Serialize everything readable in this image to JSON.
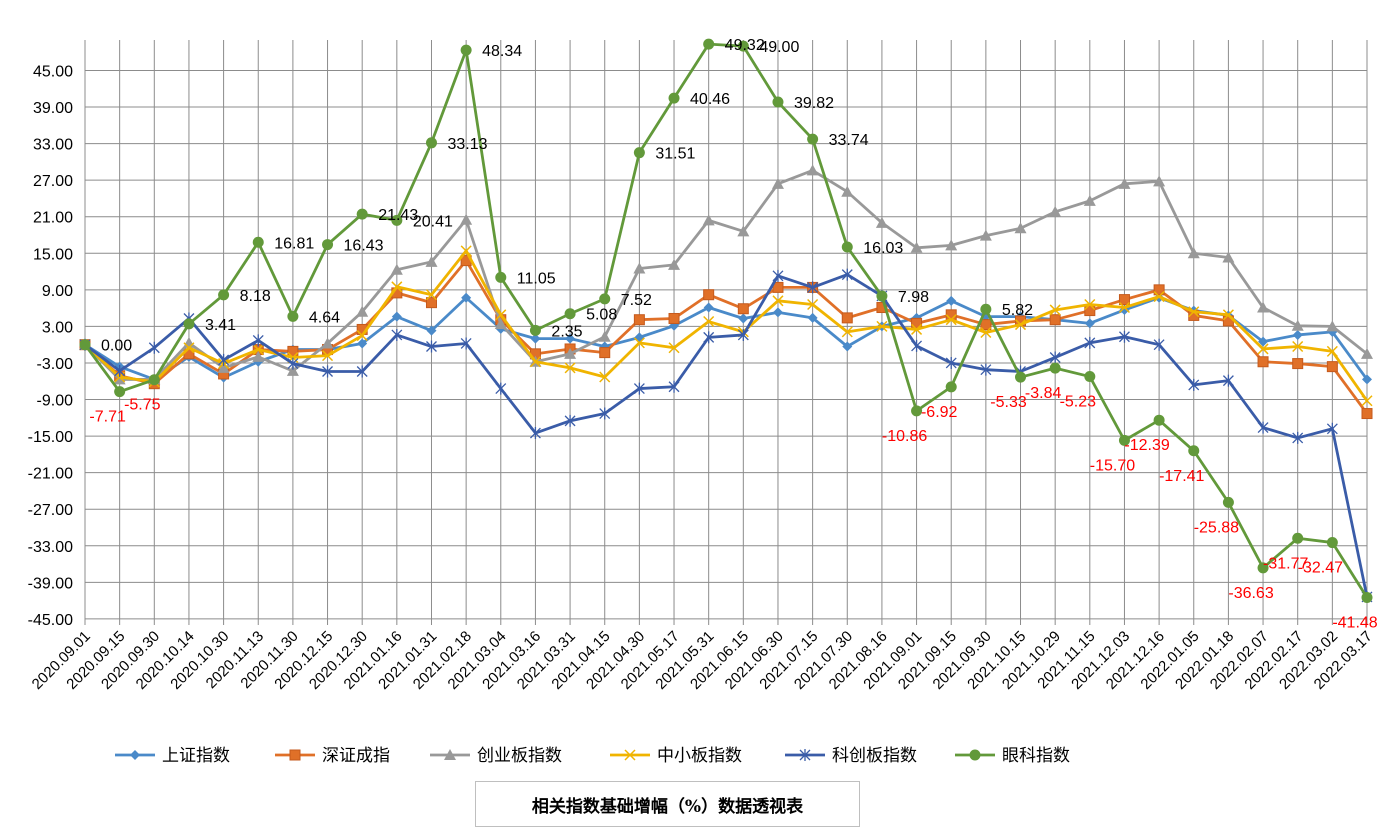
{
  "chart_data": {
    "type": "line",
    "title": "相关指数基础增幅（%）数据透视表",
    "xlabel": "",
    "ylabel": "",
    "ylim": [
      -46,
      50
    ],
    "yticks": [
      -45,
      -39,
      -33,
      -27,
      -21,
      -15,
      -9,
      -3,
      3,
      9,
      15,
      21,
      27,
      33,
      39,
      45
    ],
    "ytick_labels": [
      "-45.00",
      "-39.00",
      "-33.00",
      "-27.00",
      "-21.00",
      "-15.00",
      "-9.00",
      "-3.00",
      "3.00",
      "9.00",
      "15.00",
      "21.00",
      "27.00",
      "33.00",
      "39.00",
      "45.00"
    ],
    "grid": true,
    "legend_position": "bottom",
    "categories": [
      "2020.09.01",
      "2020.09.15",
      "2020.09.30",
      "2020.10.14",
      "2020.10.30",
      "2020.11.13",
      "2020.11.30",
      "2020.12.15",
      "2020.12.30",
      "2021.01.16",
      "2021.01.31",
      "2021.02.18",
      "2021.03.04",
      "2021.03.16",
      "2021.03.31",
      "2021.04.15",
      "2021.04.30",
      "2021.05.17",
      "2021.05.31",
      "2021.06.15",
      "2021.06.30",
      "2021.07.15",
      "2021.07.30",
      "2021.08.16",
      "2021.09.01",
      "2021.09.15",
      "2021.09.30",
      "2021.10.15",
      "2021.10.29",
      "2021.11.15",
      "2021.12.03",
      "2021.12.16",
      "2022.01.05",
      "2022.01.18",
      "2022.02.07",
      "2022.02.17",
      "2022.03.02",
      "2022.03.17"
    ],
    "series": [
      {
        "name": "上证指数",
        "color": "#4a8ac9",
        "marker": "diamond",
        "values": [
          0,
          -3.6,
          -5.7,
          -2,
          -5.4,
          -2.8,
          -0.8,
          -0.8,
          0.2,
          4.6,
          2.3,
          7.7,
          2.6,
          1,
          1,
          -0.3,
          1.2,
          3.1,
          6.1,
          4.3,
          5.3,
          4.4,
          -0.3,
          3,
          4.4,
          7.2,
          4.6,
          4.6,
          4.1,
          3.5,
          5.7,
          7.7,
          5.6,
          4.8,
          0.5,
          1.6,
          2.1,
          -5.7
        ]
      },
      {
        "name": "深证成指",
        "color": "#e07028",
        "marker": "square",
        "values": [
          0,
          -5.1,
          -6.4,
          -1.5,
          -4.8,
          -0.8,
          -1.1,
          -0.8,
          2.5,
          8.5,
          6.9,
          13.8,
          4.1,
          -1.5,
          -0.7,
          -1.3,
          4.1,
          4.3,
          8.2,
          5.9,
          9.4,
          9.4,
          4.4,
          6.1,
          3.5,
          4.9,
          3.3,
          3.9,
          4.1,
          5.6,
          7.4,
          9,
          4.8,
          3.9,
          -2.8,
          -3.1,
          -3.6,
          -11.3
        ]
      },
      {
        "name": "创业板指数",
        "color": "#999999",
        "marker": "triangle",
        "values": [
          0,
          -5.7,
          -5.7,
          0.3,
          -3.8,
          -2,
          -4.3,
          0.2,
          5.4,
          12.3,
          13.6,
          20.5,
          3.4,
          -2.8,
          -1.5,
          1.3,
          12.5,
          13.1,
          20.4,
          18.6,
          26.4,
          28.6,
          25.1,
          20,
          15.9,
          16.3,
          17.9,
          19.1,
          21.8,
          23.6,
          26.4,
          26.8,
          15,
          14.3,
          6.1,
          3.1,
          3,
          -1.5
        ]
      },
      {
        "name": "中小板指数",
        "color": "#f0b400",
        "marker": "x",
        "values": [
          0,
          -5.3,
          -6.1,
          -0.5,
          -3.1,
          -0.8,
          -2.1,
          -1.8,
          1.5,
          9.5,
          8.2,
          15.4,
          4.9,
          -2.8,
          -3.8,
          -5.3,
          0.3,
          -0.5,
          3.8,
          2.1,
          7.2,
          6.6,
          2.1,
          3,
          2.5,
          4.1,
          2,
          3.3,
          5.7,
          6.6,
          6.1,
          7.9,
          5.4,
          4.9,
          -0.7,
          -0.3,
          -1.1,
          -9.2
        ]
      },
      {
        "name": "科创板指数",
        "color": "#3a5ca8",
        "marker": "star",
        "values": [
          0,
          -4.3,
          -0.5,
          4.3,
          -2.5,
          0.7,
          -3.1,
          -4.4,
          -4.4,
          1.6,
          -0.3,
          0.2,
          -7.2,
          -14.5,
          -12.5,
          -11.3,
          -7.2,
          -6.9,
          1.2,
          1.6,
          11.3,
          9.4,
          11.5,
          8,
          -0.2,
          -3,
          -4.1,
          -4.4,
          -2.1,
          0.3,
          1.3,
          0,
          -6.6,
          -5.9,
          -13.6,
          -15.3,
          -13.8,
          -41.4
        ]
      },
      {
        "name": "眼科指数",
        "color": "#62993a",
        "marker": "circle",
        "values": [
          0,
          -7.71,
          -5.75,
          3.41,
          8.18,
          16.81,
          4.64,
          16.43,
          21.43,
          20.41,
          33.13,
          48.34,
          11.05,
          2.35,
          5.08,
          7.52,
          31.51,
          40.46,
          49.32,
          49.0,
          39.82,
          33.74,
          16.03,
          7.98,
          -10.86,
          -6.92,
          5.82,
          -5.33,
          -3.84,
          -5.23,
          -15.7,
          -12.39,
          -17.41,
          -25.88,
          -36.63,
          -31.77,
          -32.47,
          -41.48
        ],
        "data_labels": [
          "0.00",
          "-7.71",
          "-5.75",
          "3.41",
          "8.18",
          "16.81",
          "4.64",
          "16.43",
          "21.43",
          "20.41",
          "33.13",
          "48.34",
          "11.05",
          "2.35",
          "5.08",
          "7.52",
          "31.51",
          "40.46",
          "49.32",
          "49.00",
          "39.82",
          "33.74",
          "16.03",
          "7.98",
          "-10.86",
          "-6.92",
          "5.82",
          "-5.33",
          "-3.84",
          "-5.23",
          "-15.70",
          "-12.39",
          "-17.41",
          "-25.88",
          "-36.63",
          "-31.77",
          "-32.47",
          "-41.48"
        ]
      }
    ],
    "label_colors": {
      "positive": "#000000",
      "negative": "#ff0000"
    }
  }
}
